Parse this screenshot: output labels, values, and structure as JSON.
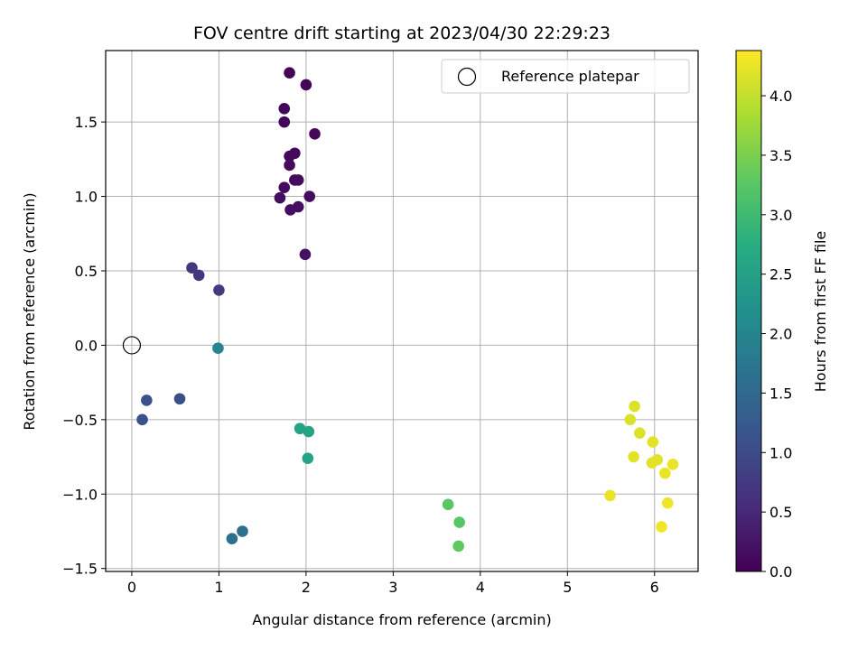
{
  "chart_data": {
    "type": "scatter",
    "title": "FOV centre drift starting at 2023/04/30 22:29:23",
    "xlabel": "Angular distance from reference (arcmin)",
    "ylabel": "Rotation from reference (arcmin)",
    "xlim": [
      -0.3,
      6.5
    ],
    "ylim": [
      -1.52,
      1.98
    ],
    "xticks": [
      0,
      1,
      2,
      3,
      4,
      5,
      6
    ],
    "yticks": [
      -1.5,
      -1.0,
      -0.5,
      0.0,
      0.5,
      1.0,
      1.5
    ],
    "xtick_labels": [
      "0",
      "1",
      "2",
      "3",
      "4",
      "5",
      "6"
    ],
    "ytick_labels": [
      "−1.5",
      "−1.0",
      "−0.5",
      "0.0",
      "0.5",
      "1.0",
      "1.5"
    ],
    "grid": true,
    "legend": {
      "placement": "top-right",
      "entries": [
        "Reference platepar"
      ]
    },
    "reference_point": {
      "x": 0.0,
      "y": 0.0
    },
    "colorbar": {
      "label": "Hours from first FF file",
      "colormap": "viridis",
      "range": [
        0.0,
        4.38
      ],
      "ticks": [
        0.0,
        0.5,
        1.0,
        1.5,
        2.0,
        2.5,
        3.0,
        3.5,
        4.0
      ],
      "tick_labels": [
        "0.0",
        "0.5",
        "1.0",
        "1.5",
        "2.0",
        "2.5",
        "3.0",
        "3.5",
        "4.0"
      ]
    },
    "points": [
      {
        "x": 1.81,
        "y": 1.83,
        "c": 0.05
      },
      {
        "x": 2.0,
        "y": 1.75,
        "c": 0.05
      },
      {
        "x": 1.75,
        "y": 1.59,
        "c": 0.07
      },
      {
        "x": 1.75,
        "y": 1.5,
        "c": 0.07
      },
      {
        "x": 2.1,
        "y": 1.42,
        "c": 0.08
      },
      {
        "x": 1.87,
        "y": 1.29,
        "c": 0.1
      },
      {
        "x": 1.81,
        "y": 1.27,
        "c": 0.1
      },
      {
        "x": 1.81,
        "y": 1.21,
        "c": 0.12
      },
      {
        "x": 1.87,
        "y": 1.11,
        "c": 0.12
      },
      {
        "x": 1.91,
        "y": 1.11,
        "c": 0.13
      },
      {
        "x": 1.75,
        "y": 1.06,
        "c": 0.13
      },
      {
        "x": 1.7,
        "y": 0.99,
        "c": 0.15
      },
      {
        "x": 2.04,
        "y": 1.0,
        "c": 0.15
      },
      {
        "x": 1.82,
        "y": 0.91,
        "c": 0.17
      },
      {
        "x": 1.91,
        "y": 0.93,
        "c": 0.17
      },
      {
        "x": 1.99,
        "y": 0.61,
        "c": 0.2
      },
      {
        "x": 0.69,
        "y": 0.52,
        "c": 0.7
      },
      {
        "x": 0.77,
        "y": 0.47,
        "c": 0.7
      },
      {
        "x": 1.0,
        "y": 0.37,
        "c": 0.75
      },
      {
        "x": 0.55,
        "y": -0.36,
        "c": 1.05
      },
      {
        "x": 0.17,
        "y": -0.37,
        "c": 1.1
      },
      {
        "x": 0.12,
        "y": -0.5,
        "c": 1.1
      },
      {
        "x": 1.27,
        "y": -1.25,
        "c": 1.6
      },
      {
        "x": 1.15,
        "y": -1.3,
        "c": 1.6
      },
      {
        "x": 0.99,
        "y": -0.02,
        "c": 2.0
      },
      {
        "x": 1.93,
        "y": -0.56,
        "c": 2.55
      },
      {
        "x": 2.03,
        "y": -0.58,
        "c": 2.55
      },
      {
        "x": 2.02,
        "y": -0.76,
        "c": 2.55
      },
      {
        "x": 3.63,
        "y": -1.07,
        "c": 3.25
      },
      {
        "x": 3.76,
        "y": -1.19,
        "c": 3.25
      },
      {
        "x": 3.75,
        "y": -1.35,
        "c": 3.3
      },
      {
        "x": 5.77,
        "y": -0.41,
        "c": 4.15
      },
      {
        "x": 5.72,
        "y": -0.5,
        "c": 4.15
      },
      {
        "x": 5.83,
        "y": -0.59,
        "c": 4.15
      },
      {
        "x": 5.98,
        "y": -0.65,
        "c": 4.2
      },
      {
        "x": 5.76,
        "y": -0.75,
        "c": 4.2
      },
      {
        "x": 6.03,
        "y": -0.77,
        "c": 4.2
      },
      {
        "x": 5.97,
        "y": -0.79,
        "c": 4.2
      },
      {
        "x": 6.21,
        "y": -0.8,
        "c": 4.25
      },
      {
        "x": 6.12,
        "y": -0.86,
        "c": 4.25
      },
      {
        "x": 5.49,
        "y": -1.01,
        "c": 4.25
      },
      {
        "x": 6.15,
        "y": -1.06,
        "c": 4.3
      },
      {
        "x": 6.08,
        "y": -1.22,
        "c": 4.3
      }
    ]
  }
}
